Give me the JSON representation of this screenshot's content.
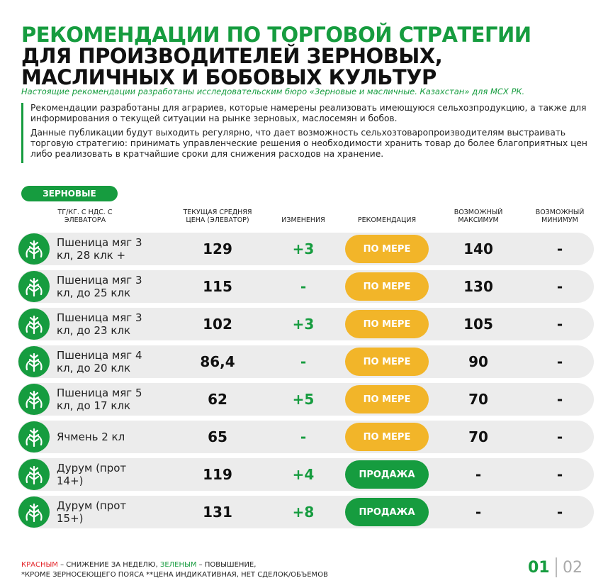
{
  "header": {
    "title_lines": [
      "РЕКОМЕНДАЦИИ ПО ТОРГОВОЙ СТРАТЕГИИ",
      "ДЛЯ ПРОИЗВОДИТЕЛЕЙ ЗЕРНОВЫХ,",
      "МАСЛИЧНЫХ И БОБОВЫХ КУЛЬТУР"
    ],
    "subtitle": "Настоящие рекомендации разработаны исследовательским бюро «Зерновые и масличные. Казахстан» для МСХ РК.",
    "intro": [
      "Рекомендации разработаны для аграриев, которые намерены реализовать имеющуюся сельхозпродукцию, а также для информирования о текущей ситуации на рынке зерновых, маслосемян и бобов.",
      "Данные публикации будут выходить регулярно, что дает возможность сельхозтоваропроизводителям выстраивать торговую стратегию: принимать управленческие решения о необходимости хранить товар до более благоприятных цен либо реализовать в кратчайшие сроки для снижения расходов на хранение."
    ]
  },
  "table": {
    "section": "ЗЕРНОВЫЕ",
    "headers": [
      "ТГ/КГ. С НДС. С ЭЛЕВАТОРА",
      "ТЕКУЩАЯ СРЕДНЯЯ ЦЕНА (ЭЛЕВАТОР)",
      "ИЗМЕНЕНИЯ",
      "РЕКОМЕНДАЦИЯ",
      "ВОЗМОЖНЫЙ МАКСИМУМ",
      "ВОЗМОЖНЫЙ МИНИМУМ"
    ],
    "rows": [
      {
        "name": "Пшеница мяг 3 кл, 28 клк +",
        "price": "129",
        "change": "+3",
        "recommendation": "ПО МЕРЕ",
        "rec_color": "#f2b529",
        "max": "140",
        "min": "-"
      },
      {
        "name": "Пшеница мяг 3 кл, до 25 клк",
        "price": "115",
        "change": "-",
        "recommendation": "ПО МЕРЕ",
        "rec_color": "#f2b529",
        "max": "130",
        "min": "-"
      },
      {
        "name": "Пшеница мяг 3 кл, до 23 клк",
        "price": "102",
        "change": "+3",
        "recommendation": "ПО МЕРЕ",
        "rec_color": "#f2b529",
        "max": "105",
        "min": "-"
      },
      {
        "name": "Пшеница мяг 4 кл, до 20 клк",
        "price": "86,4",
        "change": "-",
        "recommendation": "ПО МЕРЕ",
        "rec_color": "#f2b529",
        "max": "90",
        "min": "-"
      },
      {
        "name": "Пшеница мяг 5 кл, до 17 клк",
        "price": "62",
        "change": "+5",
        "recommendation": "ПО МЕРЕ",
        "rec_color": "#f2b529",
        "max": "70",
        "min": "-"
      },
      {
        "name": "Ячмень 2 кл",
        "price": "65",
        "change": "-",
        "recommendation": "ПО МЕРЕ",
        "rec_color": "#f2b529",
        "max": "70",
        "min": "-"
      },
      {
        "name": "Дурум (прот 14+)",
        "price": "119",
        "change": "+4",
        "recommendation": "ПРОДАЖА",
        "rec_color": "#169c3f",
        "max": "-",
        "min": "-"
      },
      {
        "name": "Дурум (прот 15+)",
        "price": "131",
        "change": "+8",
        "recommendation": "ПРОДАЖА",
        "rec_color": "#169c3f",
        "max": "-",
        "min": "-"
      }
    ]
  },
  "footer": {
    "legend": [
      "КРАСНЫМ",
      " – СНИЖЕНИЕ ЗА НЕДЕЛЮ, ",
      "ЗЕЛЕНЫМ",
      " – ПОВЫШЕНИЕ,"
    ],
    "note": "*КРОМЕ ЗЕРНОСЕЮЩЕГО ПОЯСА **ЦЕНА ИНДИКАТИВНАЯ, НЕТ СДЕЛОК/ОБЪЕМОВ",
    "pages": [
      "01",
      "02"
    ]
  }
}
